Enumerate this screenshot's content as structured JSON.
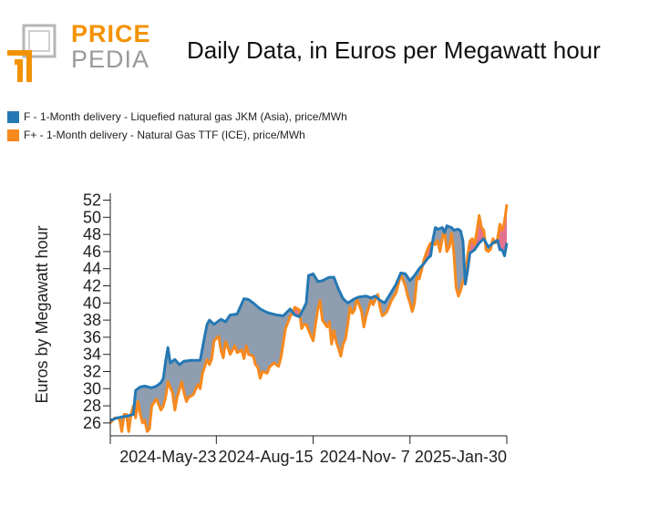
{
  "logo": {
    "word1": "PRICE",
    "word2": "PEDIA"
  },
  "colors": {
    "series_f": "#2478b4",
    "series_fplus": "#f7891e",
    "fill_gray": "#8f9db0",
    "fill_pink": "#e3728f",
    "accent": "#f39200"
  },
  "chart_data": {
    "type": "line",
    "title": "Daily Data, in Euros per Megawatt hour",
    "xlabel": "",
    "ylabel": "Euros by Megawatt hour",
    "ylim": [
      24.5,
      52.8
    ],
    "yticks": [
      26,
      28,
      30,
      32,
      34,
      36,
      38,
      40,
      42,
      44,
      46,
      48,
      50,
      52
    ],
    "xticks": [
      {
        "label": "",
        "t": 0
      },
      {
        "label": "2024-May-23",
        "t": 92
      },
      {
        "label": "2024-Aug-15",
        "t": 176
      },
      {
        "label": "2024-Nov- 7",
        "t": 260
      },
      {
        "label": "2025-Jan-30",
        "t": 344
      }
    ],
    "xlim": [
      0,
      344
    ],
    "legend": [
      {
        "label": "F - 1-Month delivery - Liquefied natural gas JKM (Asia), price/MWh",
        "color": "#2478b4"
      },
      {
        "label": "F+ - 1-Month delivery - Natural Gas TTF (ICE), price/MWh",
        "color": "#f7891e"
      }
    ],
    "series": [
      {
        "name": "F - 1-Month delivery - Liquefied natural gas JKM (Asia), price/MWh",
        "points": [
          [
            0,
            26.3
          ],
          [
            6,
            26.6
          ],
          [
            14,
            26.8
          ],
          [
            20,
            27.0
          ],
          [
            22,
            29.8
          ],
          [
            26,
            30.2
          ],
          [
            30,
            30.3
          ],
          [
            36,
            30.1
          ],
          [
            40,
            30.3
          ],
          [
            44,
            30.7
          ],
          [
            46,
            31.2
          ],
          [
            48,
            33.2
          ],
          [
            50,
            34.8
          ],
          [
            52,
            33.0
          ],
          [
            56,
            33.4
          ],
          [
            60,
            32.8
          ],
          [
            64,
            33.2
          ],
          [
            70,
            33.3
          ],
          [
            78,
            33.3
          ],
          [
            82,
            36.2
          ],
          [
            84,
            37.5
          ],
          [
            86,
            38.0
          ],
          [
            90,
            37.5
          ],
          [
            96,
            38.1
          ],
          [
            100,
            37.8
          ],
          [
            104,
            38.6
          ],
          [
            110,
            38.7
          ],
          [
            116,
            40.5
          ],
          [
            120,
            40.4
          ],
          [
            124,
            40.0
          ],
          [
            130,
            39.3
          ],
          [
            136,
            38.9
          ],
          [
            144,
            38.6
          ],
          [
            150,
            38.5
          ],
          [
            156,
            39.3
          ],
          [
            160,
            38.6
          ],
          [
            164,
            38.4
          ],
          [
            166,
            38.9
          ],
          [
            170,
            40.0
          ],
          [
            172,
            43.2
          ],
          [
            176,
            43.4
          ],
          [
            180,
            42.5
          ],
          [
            184,
            42.6
          ],
          [
            190,
            43.0
          ],
          [
            194,
            43.0
          ],
          [
            198,
            41.6
          ],
          [
            202,
            40.5
          ],
          [
            206,
            40.0
          ],
          [
            212,
            40.5
          ],
          [
            216,
            40.7
          ],
          [
            222,
            40.8
          ],
          [
            226,
            40.6
          ],
          [
            230,
            40.8
          ],
          [
            234,
            40.3
          ],
          [
            238,
            40.0
          ],
          [
            244,
            41.3
          ],
          [
            248,
            42.2
          ],
          [
            252,
            43.5
          ],
          [
            256,
            43.4
          ],
          [
            260,
            42.6
          ],
          [
            264,
            43.2
          ],
          [
            268,
            44.0
          ],
          [
            272,
            44.6
          ],
          [
            276,
            45.3
          ],
          [
            278,
            45.5
          ],
          [
            280,
            47.5
          ],
          [
            282,
            48.8
          ],
          [
            284,
            48.6
          ],
          [
            288,
            48.8
          ],
          [
            290,
            48.2
          ],
          [
            292,
            49.0
          ],
          [
            296,
            48.8
          ],
          [
            298,
            48.5
          ],
          [
            302,
            48.6
          ],
          [
            304,
            48.4
          ],
          [
            306,
            47.2
          ],
          [
            308,
            42.2
          ],
          [
            310,
            43.8
          ],
          [
            312,
            45.8
          ],
          [
            316,
            46.2
          ],
          [
            320,
            47.0
          ],
          [
            324,
            47.5
          ],
          [
            328,
            46.5
          ],
          [
            332,
            47.0
          ],
          [
            336,
            47.3
          ],
          [
            338,
            46.2
          ],
          [
            340,
            46.2
          ],
          [
            342,
            45.5
          ],
          [
            344,
            47.0
          ]
        ]
      },
      {
        "name": "F+ - 1-Month delivery - Natural Gas TTF (ICE), price/MWh",
        "points": [
          [
            0,
            26.0
          ],
          [
            4,
            26.6
          ],
          [
            8,
            26.5
          ],
          [
            10,
            25.0
          ],
          [
            12,
            27.0
          ],
          [
            14,
            27.0
          ],
          [
            16,
            25.0
          ],
          [
            18,
            27.0
          ],
          [
            20,
            28.0
          ],
          [
            22,
            26.6
          ],
          [
            24,
            28.5
          ],
          [
            26,
            27.0
          ],
          [
            28,
            26.0
          ],
          [
            30,
            26.3
          ],
          [
            32,
            25.0
          ],
          [
            34,
            25.3
          ],
          [
            36,
            28.0
          ],
          [
            40,
            28.8
          ],
          [
            44,
            27.5
          ],
          [
            46,
            28.0
          ],
          [
            48,
            29.0
          ],
          [
            50,
            30.8
          ],
          [
            54,
            29.5
          ],
          [
            56,
            27.5
          ],
          [
            58,
            29.0
          ],
          [
            62,
            30.8
          ],
          [
            64,
            29.5
          ],
          [
            66,
            28.5
          ],
          [
            68,
            29.0
          ],
          [
            72,
            29.3
          ],
          [
            76,
            30.5
          ],
          [
            78,
            30.0
          ],
          [
            80,
            31.8
          ],
          [
            84,
            33.4
          ],
          [
            86,
            32.8
          ],
          [
            88,
            33.5
          ],
          [
            90,
            35.6
          ],
          [
            94,
            36.1
          ],
          [
            96,
            34.5
          ],
          [
            98,
            33.6
          ],
          [
            100,
            35.5
          ],
          [
            102,
            34.8
          ],
          [
            104,
            34.0
          ],
          [
            108,
            35.0
          ],
          [
            110,
            34.2
          ],
          [
            114,
            34.5
          ],
          [
            116,
            33.5
          ],
          [
            118,
            35.0
          ],
          [
            120,
            34.0
          ],
          [
            124,
            33.8
          ],
          [
            126,
            32.8
          ],
          [
            128,
            32.5
          ],
          [
            130,
            31.2
          ],
          [
            132,
            32.0
          ],
          [
            136,
            31.8
          ],
          [
            138,
            32.5
          ],
          [
            142,
            33.0
          ],
          [
            146,
            32.6
          ],
          [
            148,
            33.6
          ],
          [
            150,
            35.3
          ],
          [
            152,
            37.0
          ],
          [
            156,
            38.4
          ],
          [
            158,
            38.8
          ],
          [
            160,
            39.5
          ],
          [
            164,
            39.2
          ],
          [
            166,
            37.0
          ],
          [
            168,
            37.5
          ],
          [
            170,
            37.5
          ],
          [
            174,
            36.2
          ],
          [
            176,
            35.6
          ],
          [
            178,
            37.5
          ],
          [
            180,
            39.2
          ],
          [
            182,
            40.3
          ],
          [
            184,
            38.0
          ],
          [
            188,
            37.2
          ],
          [
            190,
            37.8
          ],
          [
            192,
            35.2
          ],
          [
            194,
            36.8
          ],
          [
            196,
            35.5
          ],
          [
            198,
            34.7
          ],
          [
            200,
            33.8
          ],
          [
            202,
            35.2
          ],
          [
            204,
            35.8
          ],
          [
            206,
            37.5
          ],
          [
            208,
            39.5
          ],
          [
            210,
            38.8
          ],
          [
            212,
            39.2
          ],
          [
            214,
            40.5
          ],
          [
            218,
            39.0
          ],
          [
            220,
            37.2
          ],
          [
            222,
            38.5
          ],
          [
            226,
            40.3
          ],
          [
            228,
            39.8
          ],
          [
            232,
            41.0
          ],
          [
            234,
            39.5
          ],
          [
            236,
            38.5
          ],
          [
            238,
            38.7
          ],
          [
            240,
            39.0
          ],
          [
            244,
            40.3
          ],
          [
            248,
            41.2
          ],
          [
            252,
            43.3
          ],
          [
            256,
            42.0
          ],
          [
            258,
            40.8
          ],
          [
            260,
            40.0
          ],
          [
            262,
            39.0
          ],
          [
            264,
            40.0
          ],
          [
            266,
            43.0
          ],
          [
            268,
            42.8
          ],
          [
            270,
            43.8
          ],
          [
            272,
            45.0
          ],
          [
            274,
            45.8
          ],
          [
            276,
            46.5
          ],
          [
            278,
            47.0
          ],
          [
            280,
            47.1
          ],
          [
            282,
            46.8
          ],
          [
            284,
            47.3
          ],
          [
            286,
            46.0
          ],
          [
            288,
            47.5
          ],
          [
            290,
            48.5
          ],
          [
            292,
            46.0
          ],
          [
            294,
            46.5
          ],
          [
            296,
            48.1
          ],
          [
            298,
            46.0
          ],
          [
            300,
            41.8
          ],
          [
            302,
            40.8
          ],
          [
            304,
            41.5
          ],
          [
            306,
            42.5
          ],
          [
            308,
            43.0
          ],
          [
            310,
            45.5
          ],
          [
            312,
            47.2
          ],
          [
            314,
            47.5
          ],
          [
            316,
            46.8
          ],
          [
            318,
            48.3
          ],
          [
            320,
            50.2
          ],
          [
            322,
            48.8
          ],
          [
            324,
            48.5
          ],
          [
            326,
            46.2
          ],
          [
            328,
            46.0
          ],
          [
            330,
            46.3
          ],
          [
            332,
            47.5
          ],
          [
            334,
            47.0
          ],
          [
            336,
            47.5
          ],
          [
            338,
            49.2
          ],
          [
            340,
            48.5
          ],
          [
            342,
            49.5
          ],
          [
            344,
            51.5
          ]
        ]
      }
    ]
  }
}
